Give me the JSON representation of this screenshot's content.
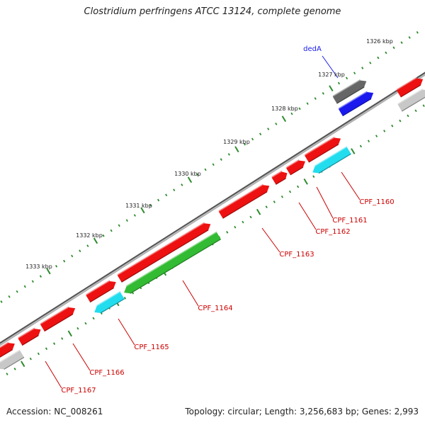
{
  "title": "Clostridium perfringens ATCC 13124, complete genome",
  "footer": {
    "accession": "Accession: NC_008261",
    "summary": "Topology: circular; Length: 3,256,683 bp; Genes: 2,993"
  },
  "colors": {
    "backbone": "#8a8a8a",
    "tick": "#2e8b2e",
    "gene_label": "#cc0000",
    "highlight_label": "#1a1aee",
    "red_gene": "#ee1111",
    "gray_gene": "#666666",
    "lightgray_gene": "#c8c8c8",
    "blue_gene": "#1a1aee",
    "cyan_gene": "#22ddee",
    "green_gene": "#33bb33"
  },
  "kbp_labels": [
    "1326 kbp",
    "1327 kbp",
    "1328 kbp",
    "1329 kbp",
    "1330 kbp",
    "1331 kbp",
    "1332 kbp",
    "1333 kbp"
  ],
  "genes": [
    {
      "label": "dedA",
      "kind": "highlight"
    },
    {
      "label": "CPF_1160",
      "kind": "normal"
    },
    {
      "label": "CPF_1161",
      "kind": "normal"
    },
    {
      "label": "CPF_1162",
      "kind": "normal"
    },
    {
      "label": "CPF_1163",
      "kind": "normal"
    },
    {
      "label": "CPF_1164",
      "kind": "normal"
    },
    {
      "label": "CPF_1165",
      "kind": "normal"
    },
    {
      "label": "CPF_1166",
      "kind": "normal"
    },
    {
      "label": "CPF_1167",
      "kind": "normal"
    }
  ]
}
